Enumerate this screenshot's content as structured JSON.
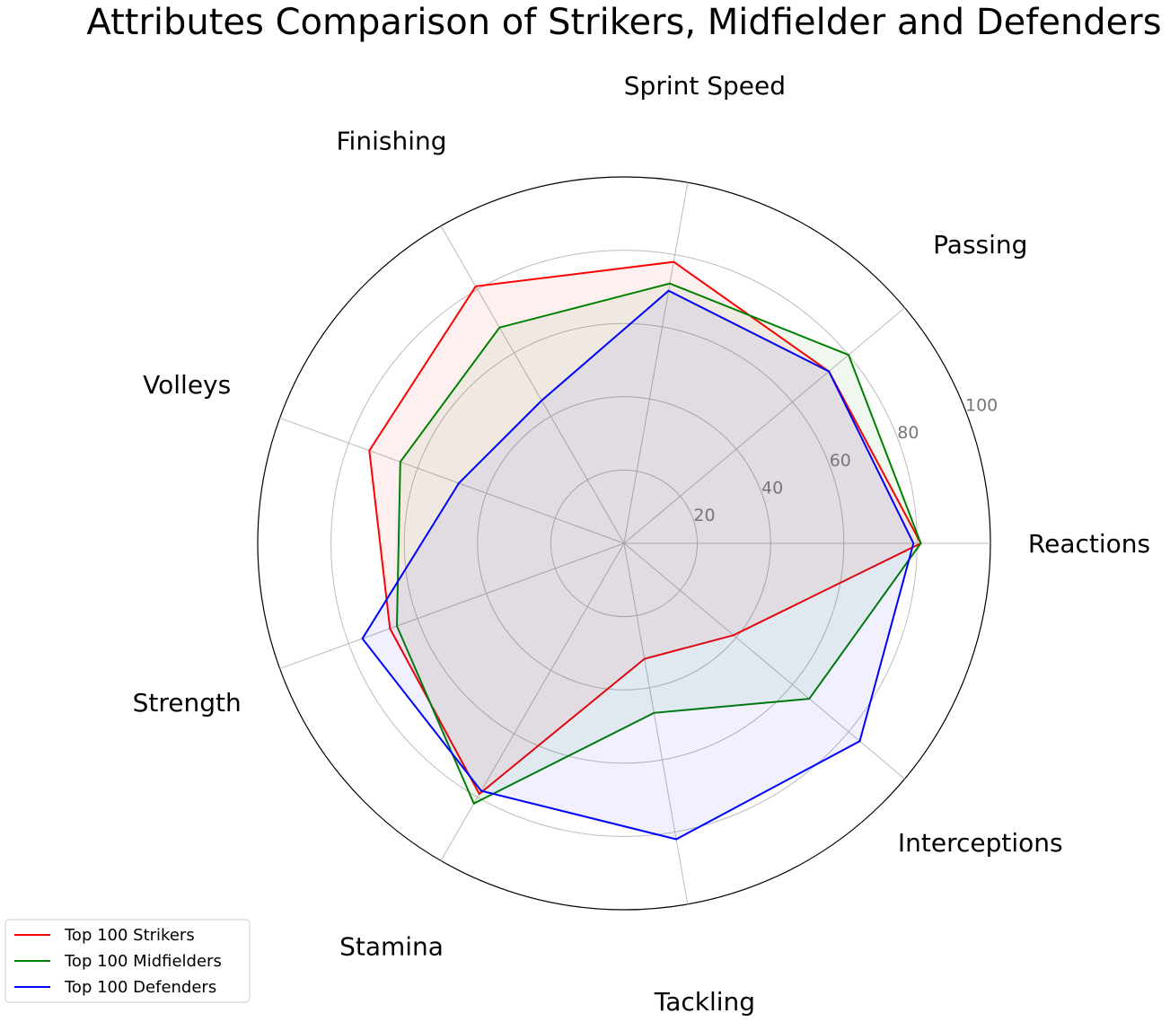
{
  "chart_data": {
    "type": "radar",
    "title": "Attributes Comparison of Strikers, Midfielder and Defenders",
    "axes": [
      "Reactions",
      "Passing",
      "Sprint Speed",
      "Finishing",
      "Volleys",
      "Strength",
      "Stamina",
      "Tackling",
      "Interceptions"
    ],
    "rlim": [
      0,
      100
    ],
    "rticks": [
      20,
      40,
      60,
      80,
      100
    ],
    "grid": true,
    "legend_position": "bottom-left",
    "series": [
      {
        "name": "Top 100 Strikers",
        "color": "#ff0000",
        "values": [
          81,
          73,
          78,
          81,
          74,
          68,
          79,
          32,
          39
        ]
      },
      {
        "name": "Top 100 Midfielders",
        "color": "#008000",
        "values": [
          81,
          80,
          72,
          68,
          65,
          66,
          82,
          47,
          66
        ]
      },
      {
        "name": "Top 100 Defenders",
        "color": "#0000ff",
        "values": [
          79,
          73,
          70,
          45,
          48,
          76,
          78,
          82,
          84
        ]
      }
    ]
  }
}
